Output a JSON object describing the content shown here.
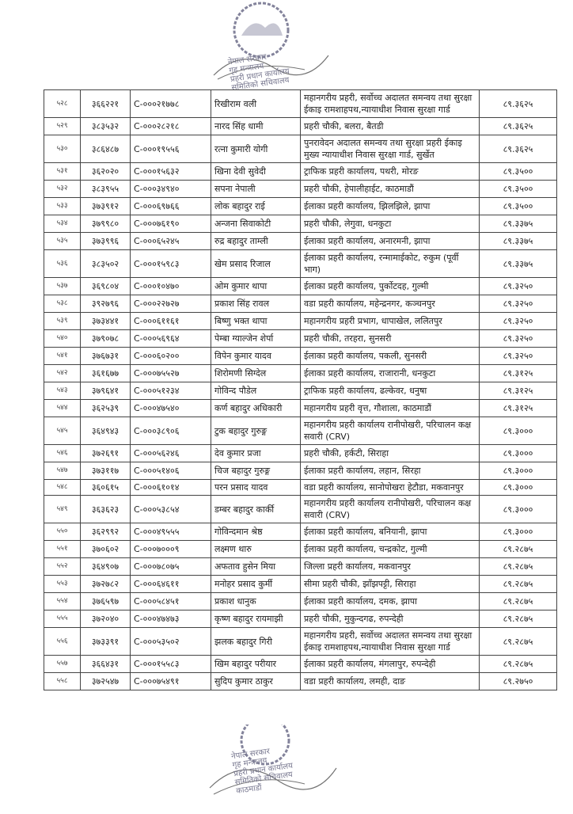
{
  "stamp": {
    "lines": [
      "नेपाल सरकार",
      "गृह मन्त्रालय",
      "प्रहरी प्रधान कार्यालय",
      "समितिको सचिवालय",
      "काठमाडौं"
    ],
    "color": "#4a4a6a"
  },
  "table": {
    "rows": [
      {
        "sn": "५२८",
        "roll": "३६६२२१",
        "code": "C-०००२१७७८",
        "name": "रिखीराम वली",
        "office": "महानगरीय प्रहरी, सर्वोच्च अदालत समन्वय तथा सुरक्षा ईकाइ रामशाहपथ,न्यायाधीश निवास सुरक्षा गार्ड",
        "score": "८९.३६२५"
      },
      {
        "sn": "५२९",
        "roll": "३८३५३२",
        "code": "C-०००२८२१८",
        "name": "नारद सिंह धामी",
        "office": "प्रहरी चौकी, बलरा, बैतडी",
        "score": "८९.३६२५"
      },
      {
        "sn": "५३०",
        "roll": "३८६४८७",
        "code": "C-०००१९५५६",
        "name": "रत्ना कुमारी योगी",
        "office": "पुनरावेदन अदालत समन्वय तथा सुरक्षा प्रहरी ईकाइ मुख्य न्यायाधीश निवास सुरक्षा गार्ड, सुर्खेत",
        "score": "८९.३६२५"
      },
      {
        "sn": "५३१",
        "roll": "३६२०२०",
        "code": "C-०००१५६३२",
        "name": "खिना देवी सुवेदी",
        "office": "ट्राफिक प्रहरी कार्यालय, पथरी, मोरङ",
        "score": "८९.३५००"
      },
      {
        "sn": "५३२",
        "roll": "३८३९५५",
        "code": "C-०००३४९४०",
        "name": "सपना नेपाली",
        "office": "प्रहरी चौकी, हेपालीहाईट, काठमाडौं",
        "score": "८९.३५००"
      },
      {
        "sn": "५३३",
        "roll": "३७३९१२",
        "code": "C-०००६९७६६",
        "name": "लोक बहादुर राई",
        "office": "ईलाका प्रहरी कार्यालय, झिलझिले, झापा",
        "score": "८९.३५००"
      },
      {
        "sn": "५३४",
        "roll": "३७९९८०",
        "code": "C-०००७६१९०",
        "name": "अन्जना सिवाकोटी",
        "office": "प्रहरी चौकी, लेगुवा, धनकुटा",
        "score": "८९.३३७५"
      },
      {
        "sn": "५३५",
        "roll": "३७३९९६",
        "code": "C-०००६५२४५",
        "name": "रुद्र बहादुर ताम्ली",
        "office": "ईलाका प्रहरी कार्यालय, अनारमनी, झापा",
        "score": "८९.३३७५"
      },
      {
        "sn": "५३६",
        "roll": "३८३५०२",
        "code": "C-०००१५९८३",
        "name": "खेम प्रसाद रिजाल",
        "office": "ईलाका प्रहरी कार्यालय, रन्मामाईकोट, रुकुम (पूर्वी भाग)",
        "score": "८९.३३७५"
      },
      {
        "sn": "५३७",
        "roll": "३६९८०४",
        "code": "C-०००१०४७०",
        "name": "ओम कुमार थापा",
        "office": "ईलाका प्रहरी कार्यालय, पुर्कोटदह, गुल्मी",
        "score": "८९.३२५०"
      },
      {
        "sn": "५३८",
        "roll": "३९२७९६",
        "code": "C-०००२२७२७",
        "name": "प्रकाश सिंह रावल",
        "office": "वडा प्रहरी कार्यालय, महेन्द्रनगर, कञ्चनपुर",
        "score": "८९.३२५०"
      },
      {
        "sn": "५३९",
        "roll": "३७३४४१",
        "code": "C-०००६११६१",
        "name": "बिष्णु भक्त थापा",
        "office": "महानगरीय प्रहरी प्रभाग, धापाखेल, ललितपुर",
        "score": "८९.३२५०"
      },
      {
        "sn": "५४०",
        "roll": "३७९०७८",
        "code": "C-०००५६९६४",
        "name": "पेम्बा ग्याल्जेन शेर्पा",
        "office": "प्रहरी चौकी, तरहरा, सुनसरी",
        "score": "८९.३२५०"
      },
      {
        "sn": "५४१",
        "roll": "३७६७३१",
        "code": "C-०००६०२००",
        "name": "विपेन कुमार यादव",
        "office": "ईलाका प्रहरी कार्यालय, पकली, सुनसरी",
        "score": "८९.३२५०"
      },
      {
        "sn": "५४२",
        "roll": "३६१६७७",
        "code": "C-०००७५५२७",
        "name": "शिरोमणी सिग्देल",
        "office": "ईलाका प्रहरी कार्यालय, राजारानी, धनकुटा",
        "score": "८९.३१२५"
      },
      {
        "sn": "५४३",
        "roll": "३७९६४१",
        "code": "C-०००५१२३४",
        "name": "गोविन्द पौडेल",
        "office": "ट्राफिक प्रहरी कार्यालय, ढल्केवर, धनुषा",
        "score": "८९.३१२५"
      },
      {
        "sn": "५४४",
        "roll": "३६२५३९",
        "code": "C-०००४७५४०",
        "name": "कर्ण बहादुर अधिकारी",
        "office": "महानगरीय प्रहरी वृत्त, गौशाला, काठमाडौं",
        "score": "८९.३१२५"
      },
      {
        "sn": "५४५",
        "roll": "३६४९४३",
        "code": "C-०००३८९०६",
        "name": "टुक बहादुर गुरुङ्ग",
        "office": "महानगरीय प्रहरी कार्यालय रानीपोखरी, परिचालन कक्ष सवारी (CRV)",
        "score": "८९.३०००"
      },
      {
        "sn": "५४६",
        "roll": "३७२६९१",
        "code": "C-०००५६२४६",
        "name": "देव कुमार प्रजा",
        "office": "प्रहरी चौकी, हर्कटी, सिराहा",
        "score": "८९.३०००"
      },
      {
        "sn": "५४७",
        "roll": "३७३११७",
        "code": "C-०००५१४०६",
        "name": "चिज बहादुर गुरुङ्ग",
        "office": "ईलाका प्रहरी कार्यालय, लहान, सिरहा",
        "score": "८९.३०००"
      },
      {
        "sn": "५४८",
        "roll": "३६०६१५",
        "code": "C-०००६१०१४",
        "name": "परन प्रसाद यादव",
        "office": "वडा प्रहरी कार्यालय, सानोपोखरा हेटौडा, मकवानपुर",
        "score": "८९.३०००"
      },
      {
        "sn": "५४९",
        "roll": "३६३६२३",
        "code": "C-०००५३८५४",
        "name": "डम्बर बहादुर कार्की",
        "office": "महानगरीय प्रहरी कार्यालय रानीपोखरी, परिचालन कक्ष सवारी (CRV)",
        "score": "८९.३०००"
      },
      {
        "sn": "५५०",
        "roll": "३६२९९२",
        "code": "C-०००४९५५५",
        "name": "गोविन्दमान श्रेष्ठ",
        "office": "ईलाका प्रहरी कार्यालय, बनियानी, झापा",
        "score": "८९.३०००"
      },
      {
        "sn": "५५१",
        "roll": "३७०६०२",
        "code": "C-०००७०००९",
        "name": "लक्ष्मण थारु",
        "office": "ईलाका प्रहरी कार्यालय, चन्द्रकोट, गुल्मी",
        "score": "८९.२८७५"
      },
      {
        "sn": "५५२",
        "roll": "३६४९०७",
        "code": "C-०००७८०७५",
        "name": "अफताव हुसेन मिया",
        "office": "जिल्ला प्रहरी कार्यालय, मकवानपुर",
        "score": "८९.२८७५"
      },
      {
        "sn": "५५३",
        "roll": "३७२७८२",
        "code": "C-०००६४६११",
        "name": "मनोहर प्रसाद कुर्मी",
        "office": "सीमा प्रहरी चौकी, झाँझपट्टी, सिराहा",
        "score": "८९.२८७५"
      },
      {
        "sn": "५५४",
        "roll": "३७६५९७",
        "code": "C-०००५८४५१",
        "name": "प्रकाश धानुक",
        "office": "ईलाका प्रहरी कार्यालय, दमक, झापा",
        "score": "८९.२८७५"
      },
      {
        "sn": "५५५",
        "roll": "३७२०४०",
        "code": "C-०००४७४७३",
        "name": "कृष्ण बहादुर रायमाझी",
        "office": "प्रहरी चौकी, मुकुन्दगढ, रुपन्देही",
        "score": "८९.२८७५"
      },
      {
        "sn": "५५६",
        "roll": "३७३३९१",
        "code": "C-०००५३५०२",
        "name": "झलक बहादुर गिरी",
        "office": "महानगरीय प्रहरी, सर्वोच्च अदालत समन्वय तथा सुरक्षा ईकाइ रामशाहपथ,न्यायाधीश निवास सुरक्षा गार्ड",
        "score": "८९.२८७५"
      },
      {
        "sn": "५५७",
        "roll": "३६६४३१",
        "code": "C-०००१५५८३",
        "name": "खिम बहादुर परीयार",
        "office": "ईलाका प्रहरी कार्यालय, मंगलापुर, रुपन्देही",
        "score": "८९.२८७५"
      },
      {
        "sn": "५५८",
        "roll": "३७२५४७",
        "code": "C-०००७५४९१",
        "name": "सुदिप कुमार ठाकुर",
        "office": "वडा प्रहरी कार्यालय, लमही, दाङ",
        "score": "८९.२७५०"
      }
    ]
  }
}
